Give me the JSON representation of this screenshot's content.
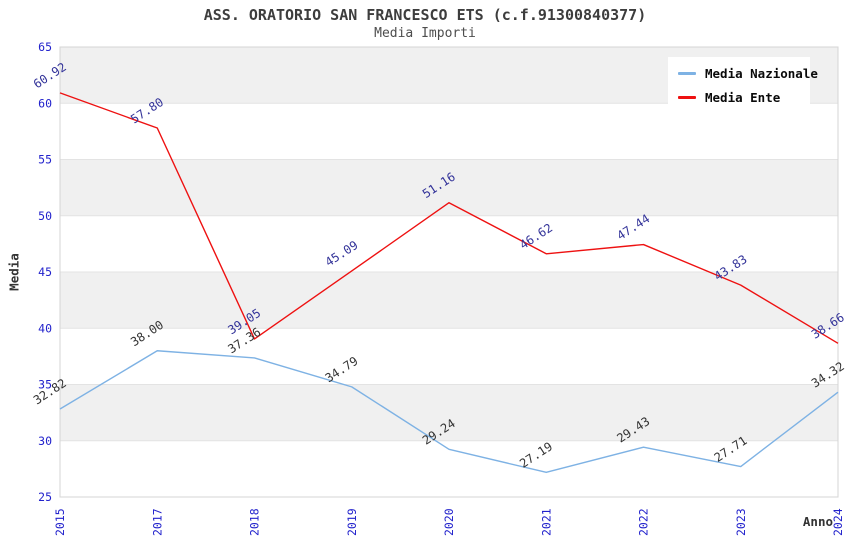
{
  "title": "ASS. ORATORIO SAN FRANCESCO ETS (c.f.91300840377)",
  "subtitle": "Media Importi",
  "chart_data": {
    "type": "line",
    "title": "ASS. ORATORIO SAN FRANCESCO ETS (c.f.91300840377)",
    "subtitle": "Media Importi",
    "xlabel": "Anno",
    "ylabel": "Media",
    "categories": [
      "2015",
      "2017",
      "2018",
      "2019",
      "2020",
      "2021",
      "2022",
      "2023",
      "2024"
    ],
    "series": [
      {
        "name": "Media Nazionale",
        "color": "#7eb2e4",
        "label_color": "#333333",
        "values": [
          32.82,
          38.0,
          37.36,
          34.79,
          29.24,
          27.19,
          29.43,
          27.71,
          34.32
        ]
      },
      {
        "name": "Media Ente",
        "color": "#ee1111",
        "label_color": "#333399",
        "values": [
          60.92,
          57.8,
          39.05,
          45.09,
          51.16,
          46.62,
          47.44,
          43.83,
          38.66
        ]
      }
    ],
    "ylim": [
      25,
      65
    ],
    "ytick_step": 5,
    "yticks": [
      25,
      30,
      35,
      40,
      45,
      50,
      55,
      60,
      65
    ],
    "grid": true,
    "band_color": "#f0f0f0",
    "gridline_color": "#e3e3e3",
    "border_color": "#d5d5d5",
    "tick_color": "#2222cc",
    "legend_position": "top-right",
    "legend": [
      "Media Nazionale",
      "Media Ente"
    ]
  }
}
